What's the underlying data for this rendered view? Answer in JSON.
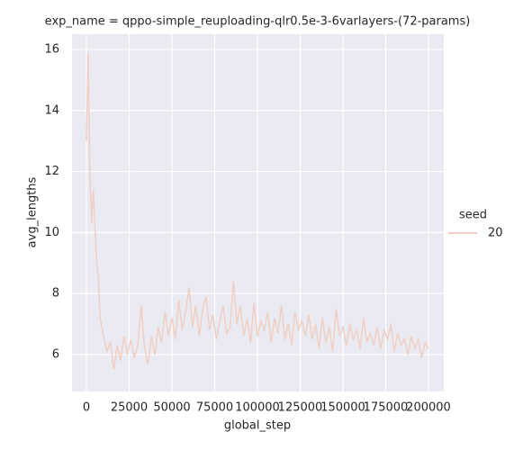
{
  "chart_data": {
    "type": "line",
    "title": "exp_name = qppo-simple_reuploading-qlr0.5e-3-6varlayers-(72-params)",
    "x_label": "global_step",
    "y_label": "avg_lengths",
    "legend_title": "seed",
    "x": [
      0,
      1000,
      2000,
      3000,
      4000,
      5000,
      6000,
      7000,
      8000,
      10000,
      12000,
      14000,
      16000,
      18000,
      20000,
      22000,
      24000,
      26000,
      28000,
      30000,
      32000,
      34000,
      36000,
      38000,
      40000,
      42000,
      44000,
      46000,
      48000,
      50000,
      52000,
      54000,
      56000,
      58000,
      60000,
      62000,
      64000,
      66000,
      68000,
      70000,
      72000,
      74000,
      76000,
      78000,
      80000,
      82000,
      84000,
      86000,
      88000,
      90000,
      92000,
      94000,
      96000,
      98000,
      100000,
      102000,
      104000,
      106000,
      108000,
      110000,
      112000,
      114000,
      116000,
      118000,
      120000,
      122000,
      124000,
      126000,
      128000,
      130000,
      132000,
      134000,
      136000,
      138000,
      140000,
      142000,
      144000,
      146000,
      148000,
      150000,
      152000,
      154000,
      156000,
      158000,
      160000,
      162000,
      164000,
      166000,
      168000,
      170000,
      172000,
      174000,
      176000,
      178000,
      180000,
      182000,
      184000,
      186000,
      188000,
      190000,
      192000,
      194000,
      196000,
      198000,
      200000
    ],
    "series": [
      {
        "name": "20",
        "color": "#f0cfc4",
        "values": [
          13,
          15.9,
          12.0,
          10.3,
          11.4,
          10.2,
          9.0,
          8.5,
          7.2,
          6.6,
          6.1,
          6.4,
          5.5,
          6.3,
          5.8,
          6.6,
          6.0,
          6.5,
          5.9,
          6.3,
          7.6,
          6.2,
          5.7,
          6.6,
          6.0,
          6.9,
          6.4,
          7.4,
          6.6,
          7.2,
          6.5,
          7.8,
          6.8,
          7.4,
          8.2,
          6.9,
          7.6,
          6.6,
          7.5,
          7.9,
          6.8,
          7.3,
          6.5,
          7.1,
          7.6,
          6.7,
          6.9,
          8.4,
          7.0,
          7.6,
          6.6,
          7.2,
          6.4,
          7.7,
          6.6,
          7.1,
          6.8,
          7.4,
          6.4,
          7.2,
          6.7,
          7.6,
          6.5,
          7.0,
          6.3,
          7.4,
          6.8,
          7.1,
          6.6,
          7.3,
          6.5,
          7.0,
          6.2,
          7.2,
          6.4,
          6.9,
          6.1,
          7.5,
          6.6,
          6.9,
          6.3,
          7.0,
          6.5,
          6.8,
          6.2,
          7.2,
          6.4,
          6.7,
          6.3,
          6.9,
          6.2,
          6.8,
          6.5,
          7.0,
          6.1,
          6.7,
          6.3,
          6.5,
          6.0,
          6.6,
          6.2,
          6.5,
          5.9,
          6.4,
          6.2
        ]
      }
    ],
    "xlim": [
      -8421,
      208947
    ],
    "ylim": [
      4.79,
      16.5
    ],
    "xticks": [
      0,
      25000,
      50000,
      75000,
      100000,
      125000,
      150000,
      175000,
      200000
    ],
    "yticks": [
      6,
      8,
      10,
      12,
      14,
      16
    ],
    "grid": true
  }
}
